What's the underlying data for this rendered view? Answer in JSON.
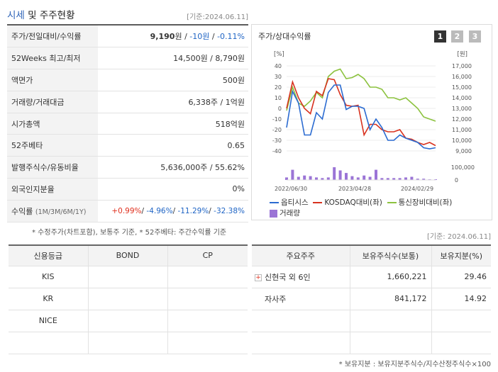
{
  "header": {
    "title_main": "시세",
    "title_rest": " 및 주주현황",
    "basis": "[기준:2024.06.11]"
  },
  "summary": [
    {
      "label": "주가/전일대비/수익률",
      "price": "9,190",
      "price_unit": "원",
      "change": "-10원",
      "change_pct": "-0.11%"
    },
    {
      "label": "52Weeks 최고/최저",
      "value": "14,500원 / 8,790원"
    },
    {
      "label": "액면가",
      "value": "500원"
    },
    {
      "label": "거래량/거래대금",
      "value": "6,338주 / 1억원"
    },
    {
      "label": "시가총액",
      "value": "518억원"
    },
    {
      "label": "52주베타",
      "value": "0.65"
    },
    {
      "label": "발행주식수/유동비율",
      "value": "5,636,000주 / 55.62%"
    },
    {
      "label": "외국인지분율",
      "value": "0%"
    },
    {
      "label": "수익률",
      "label_sub": "(1M/3M/6M/1Y)",
      "r1": "+0.99%",
      "r2": "-4.96%",
      "r3": "-11.29%",
      "r4": "-32.38%"
    }
  ],
  "summary_note": "* 수정주가(차트포함), 보통주 기준, * 52주베타: 주간수익률 기준",
  "chart_panel": {
    "title": "주가/상대수익률",
    "pages": [
      "1",
      "2",
      "3"
    ],
    "left_unit": "[%]",
    "right_unit": "[원]"
  },
  "chart_data": {
    "type": "line",
    "y_left_ticks": [
      "40",
      "30",
      "20",
      "10",
      "0",
      "-10",
      "-20",
      "-30",
      "-40"
    ],
    "y_right_ticks": [
      "17,000",
      "16,000",
      "15,000",
      "14,000",
      "13,000",
      "12,000",
      "11,000",
      "10,000",
      "9,000"
    ],
    "vol_ticks": [
      "100,000",
      "0"
    ],
    "x_ticks": [
      "2022/06/30",
      "2023/04/28",
      "2024/02/29"
    ],
    "ylim_left": [
      -40,
      40
    ],
    "series": [
      {
        "name": "옵티시스",
        "color": "#2b6bd1",
        "values": [
          -18,
          16,
          5,
          -25,
          -25,
          -4,
          -10,
          15,
          22,
          22,
          -1,
          2,
          2,
          0,
          -20,
          -10,
          -18,
          -30,
          -30,
          -25,
          -28,
          -30,
          -32,
          -37,
          -38,
          -37
        ]
      },
      {
        "name": "KOSDAQ대비(좌)",
        "color": "#d8321f",
        "values": [
          0,
          25,
          10,
          0,
          -5,
          16,
          12,
          28,
          27,
          13,
          3,
          2,
          3,
          -25,
          -15,
          -15,
          -20,
          -22,
          -22,
          -20,
          -28,
          -29,
          -32,
          -34,
          -32,
          -35
        ]
      },
      {
        "name": "통신장비대비(좌)",
        "color": "#8cc23f",
        "values": [
          -2,
          20,
          5,
          2,
          7,
          15,
          10,
          30,
          35,
          37,
          28,
          29,
          32,
          28,
          20,
          20,
          18,
          10,
          10,
          8,
          10,
          5,
          0,
          -8,
          -10,
          -12
        ]
      }
    ],
    "volume": {
      "name": "거래량",
      "color": "#9b74d6",
      "values": [
        20,
        80,
        25,
        35,
        30,
        20,
        15,
        20,
        100,
        75,
        55,
        30,
        20,
        35,
        25,
        80,
        15,
        15,
        15,
        15,
        20,
        25,
        10,
        10,
        5,
        5
      ]
    }
  },
  "credit": {
    "headers": [
      "신용등급",
      "BOND",
      "CP"
    ],
    "rows": [
      [
        "KIS",
        "",
        ""
      ],
      [
        "KR",
        "",
        ""
      ],
      [
        "NICE",
        "",
        ""
      ],
      [
        "",
        "",
        ""
      ]
    ]
  },
  "holders": {
    "basis": "[기준: 2024.06.11]",
    "headers": [
      "주요주주",
      "보유주식수(보통)",
      "보유지분(%)"
    ],
    "rows": [
      {
        "name": "신현국 외 6인",
        "shares": "1,660,221",
        "pct": "29.46",
        "expandable": true
      },
      {
        "name": "자사주",
        "shares": "841,172",
        "pct": "14.92",
        "expandable": false
      },
      {
        "name": "",
        "shares": "",
        "pct": "",
        "expandable": false
      },
      {
        "name": "",
        "shares": "",
        "pct": "",
        "expandable": false
      }
    ],
    "note": "* 보유지분 : 보유지분주식수/지수산정주식수×100"
  }
}
